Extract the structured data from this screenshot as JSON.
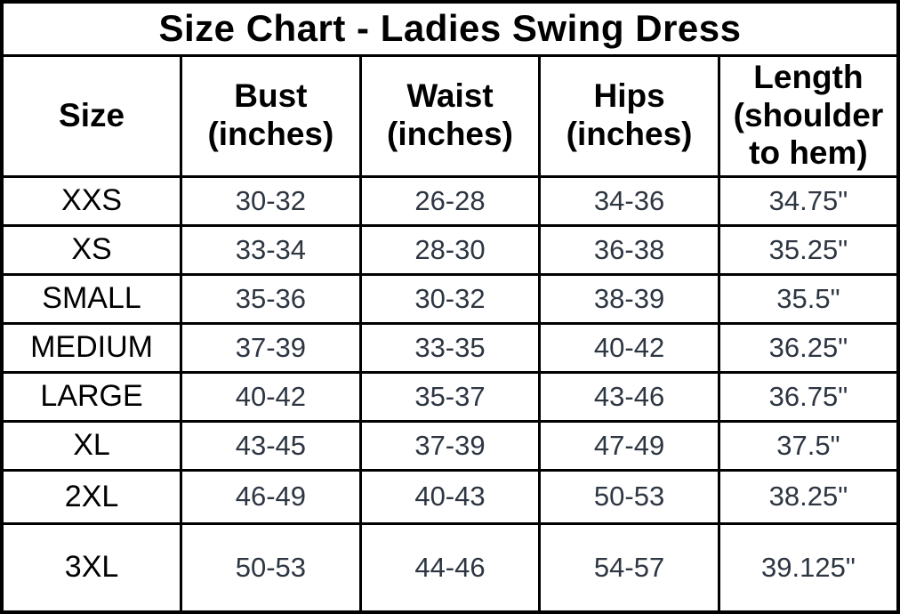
{
  "chart_data": {
    "type": "table",
    "title": "Size Chart - Ladies Swing Dress",
    "columns": [
      "Size",
      "Bust (inches)",
      "Waist (inches)",
      "Hips (inches)",
      "Length (shoulder to hem)"
    ],
    "rows": [
      [
        "XXS",
        "30-32",
        "26-28",
        "34-36",
        "34.75\""
      ],
      [
        "XS",
        "33-34",
        "28-30",
        "36-38",
        "35.25\""
      ],
      [
        "SMALL",
        "35-36",
        "30-32",
        "38-39",
        "35.5\""
      ],
      [
        "MEDIUM",
        "37-39",
        "33-35",
        "40-42",
        "36.25\""
      ],
      [
        "LARGE",
        "40-42",
        "35-37",
        "43-46",
        "36.75\""
      ],
      [
        "XL",
        "43-45",
        "37-39",
        "47-49",
        "37.5\""
      ],
      [
        "2XL",
        "46-49",
        "40-43",
        "50-53",
        "38.25\""
      ],
      [
        "3XL",
        "50-53",
        "44-46",
        "54-57",
        "39.125\""
      ]
    ]
  },
  "display": {
    "headers": [
      "Size",
      "Bust\n(inches)",
      "Waist\n(inches)",
      "Hips\n(inches)",
      "Length\n(shoulder\nto hem)"
    ]
  },
  "colors": {
    "background": "#ffffff",
    "border": "#000000",
    "title_text": "#000000",
    "header_text": "#000000",
    "size_label_text": "#000000",
    "value_text": "#2e3642"
  }
}
